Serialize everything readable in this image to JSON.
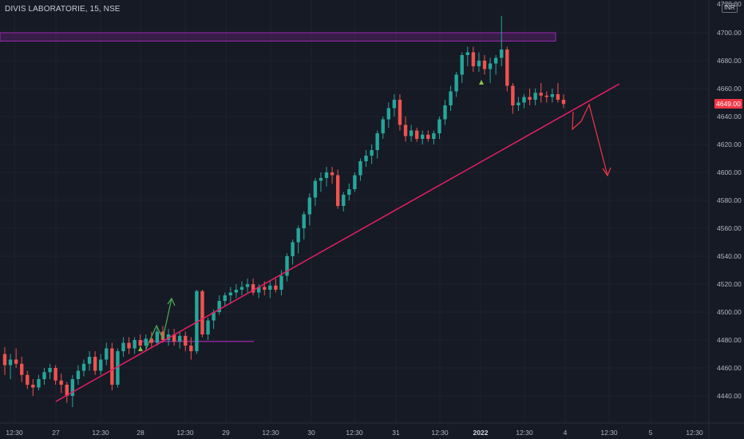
{
  "header": {
    "title": "DIVIS LABORATORIE, 15, NSE",
    "currency": "INR"
  },
  "price_axis": {
    "ticks": [
      "4700.00",
      "4680.00",
      "4660.00",
      "4640.00",
      "4620.00",
      "4600.00",
      "4580.00",
      "4560.00",
      "4540.00",
      "4520.00",
      "4500.00",
      "4480.00",
      "4460.00",
      "4440.00"
    ],
    "top_partial": "4720.00",
    "last_price": "4649.00"
  },
  "time_axis": {
    "ticks": [
      "12:30",
      "27",
      "12:30",
      "28",
      "12:30",
      "29",
      "12:30",
      "30",
      "12:30",
      "31",
      "12:30",
      "2022",
      "12:30",
      "4",
      "12:30",
      "5",
      "12:30"
    ]
  },
  "colors": {
    "background": "#161a25",
    "up": "#26a69a",
    "down": "#ef5350",
    "trendline": "#e91e63",
    "zone": "#9c27b0",
    "projection_up": "#4caf50",
    "projection_down": "#f23645",
    "grid": "#1f2330",
    "axis_text": "#b2b5be"
  },
  "chart_data": {
    "type": "candlestick",
    "symbol": "DIVIS LABORATORIE",
    "interval": "15",
    "exchange": "NSE",
    "ylim": [
      4428,
      4722
    ],
    "candles": [
      {
        "o": 4470,
        "h": 4475,
        "l": 4455,
        "c": 4462
      },
      {
        "o": 4462,
        "h": 4470,
        "l": 4452,
        "c": 4466
      },
      {
        "o": 4466,
        "h": 4474,
        "l": 4460,
        "c": 4463
      },
      {
        "o": 4463,
        "h": 4468,
        "l": 4450,
        "c": 4455
      },
      {
        "o": 4455,
        "h": 4458,
        "l": 4445,
        "c": 4448
      },
      {
        "o": 4448,
        "h": 4452,
        "l": 4440,
        "c": 4446
      },
      {
        "o": 4446,
        "h": 4455,
        "l": 4444,
        "c": 4452
      },
      {
        "o": 4452,
        "h": 4460,
        "l": 4448,
        "c": 4457
      },
      {
        "o": 4457,
        "h": 4463,
        "l": 4452,
        "c": 4460
      },
      {
        "o": 4460,
        "h": 4462,
        "l": 4448,
        "c": 4451
      },
      {
        "o": 4451,
        "h": 4456,
        "l": 4442,
        "c": 4448
      },
      {
        "o": 4448,
        "h": 4450,
        "l": 4435,
        "c": 4440
      },
      {
        "o": 4440,
        "h": 4455,
        "l": 4432,
        "c": 4452
      },
      {
        "o": 4452,
        "h": 4462,
        "l": 4448,
        "c": 4458
      },
      {
        "o": 4458,
        "h": 4466,
        "l": 4454,
        "c": 4463
      },
      {
        "o": 4463,
        "h": 4472,
        "l": 4458,
        "c": 4468
      },
      {
        "o": 4468,
        "h": 4472,
        "l": 4455,
        "c": 4458
      },
      {
        "o": 4458,
        "h": 4470,
        "l": 4455,
        "c": 4466
      },
      {
        "o": 4466,
        "h": 4478,
        "l": 4462,
        "c": 4474
      },
      {
        "o": 4474,
        "h": 4478,
        "l": 4444,
        "c": 4448
      },
      {
        "o": 4448,
        "h": 4474,
        "l": 4446,
        "c": 4472
      },
      {
        "o": 4472,
        "h": 4482,
        "l": 4468,
        "c": 4478
      },
      {
        "o": 4478,
        "h": 4482,
        "l": 4470,
        "c": 4474
      },
      {
        "o": 4474,
        "h": 4482,
        "l": 4470,
        "c": 4480
      },
      {
        "o": 4480,
        "h": 4484,
        "l": 4472,
        "c": 4476
      },
      {
        "o": 4476,
        "h": 4484,
        "l": 4472,
        "c": 4481
      },
      {
        "o": 4481,
        "h": 4486,
        "l": 4475,
        "c": 4478
      },
      {
        "o": 4478,
        "h": 4490,
        "l": 4476,
        "c": 4486
      },
      {
        "o": 4486,
        "h": 4490,
        "l": 4478,
        "c": 4480
      },
      {
        "o": 4480,
        "h": 4488,
        "l": 4476,
        "c": 4484
      },
      {
        "o": 4484,
        "h": 4488,
        "l": 4476,
        "c": 4479
      },
      {
        "o": 4479,
        "h": 4486,
        "l": 4474,
        "c": 4483
      },
      {
        "o": 4483,
        "h": 4486,
        "l": 4472,
        "c": 4476
      },
      {
        "o": 4476,
        "h": 4482,
        "l": 4466,
        "c": 4472
      },
      {
        "o": 4472,
        "h": 4516,
        "l": 4470,
        "c": 4515
      },
      {
        "o": 4515,
        "h": 4516,
        "l": 4482,
        "c": 4484
      },
      {
        "o": 4484,
        "h": 4496,
        "l": 4480,
        "c": 4494
      },
      {
        "o": 4494,
        "h": 4502,
        "l": 4488,
        "c": 4500
      },
      {
        "o": 4500,
        "h": 4512,
        "l": 4498,
        "c": 4508
      },
      {
        "o": 4508,
        "h": 4514,
        "l": 4504,
        "c": 4512
      },
      {
        "o": 4512,
        "h": 4518,
        "l": 4506,
        "c": 4514
      },
      {
        "o": 4514,
        "h": 4520,
        "l": 4510,
        "c": 4516
      },
      {
        "o": 4516,
        "h": 4522,
        "l": 4512,
        "c": 4518
      },
      {
        "o": 4518,
        "h": 4524,
        "l": 4514,
        "c": 4520
      },
      {
        "o": 4520,
        "h": 4524,
        "l": 4512,
        "c": 4514
      },
      {
        "o": 4514,
        "h": 4520,
        "l": 4510,
        "c": 4518
      },
      {
        "o": 4518,
        "h": 4522,
        "l": 4512,
        "c": 4516
      },
      {
        "o": 4516,
        "h": 4522,
        "l": 4510,
        "c": 4519
      },
      {
        "o": 4519,
        "h": 4524,
        "l": 4514,
        "c": 4516
      },
      {
        "o": 4516,
        "h": 4530,
        "l": 4512,
        "c": 4526
      },
      {
        "o": 4526,
        "h": 4542,
        "l": 4522,
        "c": 4540
      },
      {
        "o": 4540,
        "h": 4552,
        "l": 4534,
        "c": 4550
      },
      {
        "o": 4550,
        "h": 4562,
        "l": 4542,
        "c": 4560
      },
      {
        "o": 4560,
        "h": 4572,
        "l": 4552,
        "c": 4570
      },
      {
        "o": 4570,
        "h": 4585,
        "l": 4562,
        "c": 4582
      },
      {
        "o": 4582,
        "h": 4596,
        "l": 4576,
        "c": 4594
      },
      {
        "o": 4594,
        "h": 4600,
        "l": 4586,
        "c": 4596
      },
      {
        "o": 4596,
        "h": 4604,
        "l": 4590,
        "c": 4600
      },
      {
        "o": 4600,
        "h": 4604,
        "l": 4592,
        "c": 4598
      },
      {
        "o": 4598,
        "h": 4602,
        "l": 4574,
        "c": 4576
      },
      {
        "o": 4576,
        "h": 4586,
        "l": 4572,
        "c": 4584
      },
      {
        "o": 4584,
        "h": 4592,
        "l": 4580,
        "c": 4588
      },
      {
        "o": 4588,
        "h": 4600,
        "l": 4586,
        "c": 4598
      },
      {
        "o": 4598,
        "h": 4610,
        "l": 4594,
        "c": 4608
      },
      {
        "o": 4608,
        "h": 4616,
        "l": 4604,
        "c": 4612
      },
      {
        "o": 4612,
        "h": 4620,
        "l": 4606,
        "c": 4616
      },
      {
        "o": 4616,
        "h": 4630,
        "l": 4610,
        "c": 4628
      },
      {
        "o": 4628,
        "h": 4640,
        "l": 4624,
        "c": 4638
      },
      {
        "o": 4638,
        "h": 4650,
        "l": 4632,
        "c": 4646
      },
      {
        "o": 4646,
        "h": 4656,
        "l": 4640,
        "c": 4652
      },
      {
        "o": 4652,
        "h": 4656,
        "l": 4630,
        "c": 4634
      },
      {
        "o": 4634,
        "h": 4640,
        "l": 4622,
        "c": 4626
      },
      {
        "o": 4626,
        "h": 4634,
        "l": 4622,
        "c": 4630
      },
      {
        "o": 4630,
        "h": 4632,
        "l": 4622,
        "c": 4624
      },
      {
        "o": 4624,
        "h": 4630,
        "l": 4620,
        "c": 4627
      },
      {
        "o": 4627,
        "h": 4630,
        "l": 4622,
        "c": 4624
      },
      {
        "o": 4624,
        "h": 4630,
        "l": 4620,
        "c": 4628
      },
      {
        "o": 4628,
        "h": 4640,
        "l": 4624,
        "c": 4638
      },
      {
        "o": 4638,
        "h": 4652,
        "l": 4634,
        "c": 4648
      },
      {
        "o": 4648,
        "h": 4662,
        "l": 4644,
        "c": 4658
      },
      {
        "o": 4658,
        "h": 4672,
        "l": 4654,
        "c": 4670
      },
      {
        "o": 4670,
        "h": 4686,
        "l": 4664,
        "c": 4684
      },
      {
        "o": 4684,
        "h": 4690,
        "l": 4676,
        "c": 4686
      },
      {
        "o": 4686,
        "h": 4690,
        "l": 4672,
        "c": 4676
      },
      {
        "o": 4676,
        "h": 4686,
        "l": 4672,
        "c": 4680
      },
      {
        "o": 4680,
        "h": 4684,
        "l": 4670,
        "c": 4674
      },
      {
        "o": 4674,
        "h": 4682,
        "l": 4664,
        "c": 4678
      },
      {
        "o": 4678,
        "h": 4684,
        "l": 4670,
        "c": 4682
      },
      {
        "o": 4682,
        "h": 4712,
        "l": 4676,
        "c": 4688
      },
      {
        "o": 4688,
        "h": 4690,
        "l": 4658,
        "c": 4662
      },
      {
        "o": 4662,
        "h": 4664,
        "l": 4642,
        "c": 4648
      },
      {
        "o": 4648,
        "h": 4654,
        "l": 4644,
        "c": 4650
      },
      {
        "o": 4650,
        "h": 4656,
        "l": 4646,
        "c": 4654
      },
      {
        "o": 4654,
        "h": 4660,
        "l": 4648,
        "c": 4652
      },
      {
        "o": 4652,
        "h": 4660,
        "l": 4648,
        "c": 4657
      },
      {
        "o": 4657,
        "h": 4664,
        "l": 4650,
        "c": 4655
      },
      {
        "o": 4655,
        "h": 4658,
        "l": 4650,
        "c": 4654
      },
      {
        "o": 4654,
        "h": 4660,
        "l": 4650,
        "c": 4656
      },
      {
        "o": 4656,
        "h": 4664,
        "l": 4650,
        "c": 4652
      },
      {
        "o": 4652,
        "h": 4656,
        "l": 4646,
        "c": 4649
      }
    ],
    "trendline": [
      {
        "date": "27",
        "price": 4434
      },
      {
        "beyond": "4",
        "price": 4664
      }
    ],
    "resistance_zone": [
      4694,
      4700
    ],
    "support_line": 4479,
    "markers": [
      "up-triangle near 28 low",
      "up-triangle near 2022 high"
    ],
    "projection_up_path": "bounce near 28 upward",
    "projection_down_path": "break of trendline toward 4600"
  }
}
